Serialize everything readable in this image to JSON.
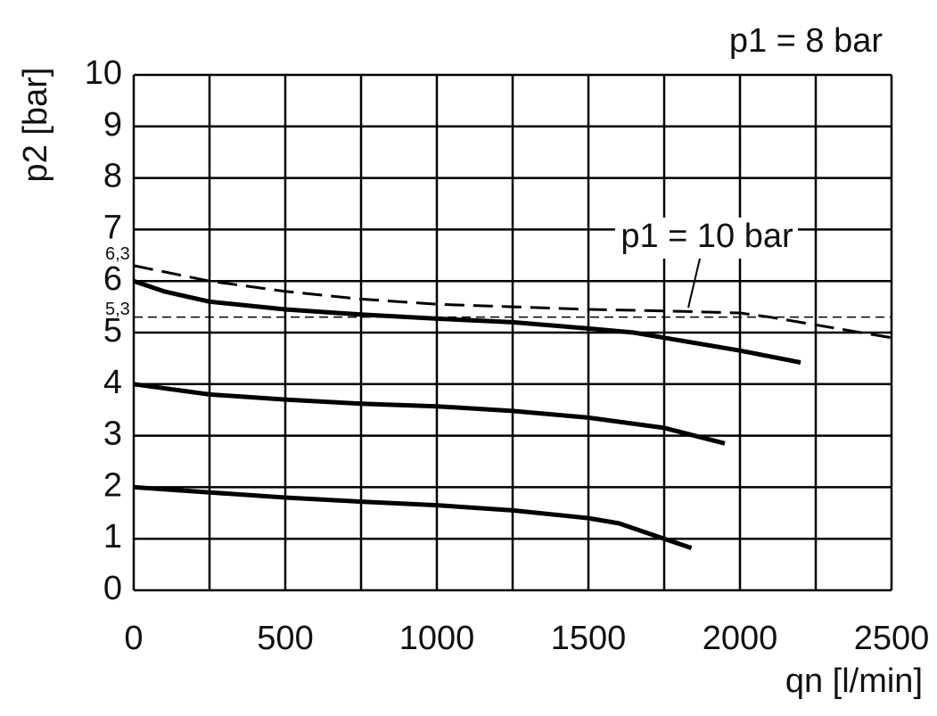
{
  "chart_data": {
    "type": "line",
    "y_label": "p2 [bar]",
    "x_label": "qn [l/min]",
    "annotations": [
      "p1 = 8 bar"
    ],
    "xlim": [
      0,
      2500
    ],
    "xticks": [
      0,
      500,
      1000,
      1500,
      2000,
      2500
    ],
    "x_minor_grid": [
      250,
      750,
      1250,
      1750,
      2250
    ],
    "ylim": [
      0,
      10
    ],
    "yticks": [
      0,
      1,
      2,
      3,
      4,
      5,
      6,
      7,
      8,
      9,
      10
    ],
    "grid": true,
    "reference_lines": [
      {
        "value": 5.3,
        "label": "5,3"
      }
    ],
    "start_labels": [
      {
        "value": 6.3,
        "label": "6,3"
      }
    ],
    "series": [
      {
        "color": "#000000",
        "dashed": false,
        "x": [
          0,
          100,
          250,
          500,
          750,
          1000,
          1250,
          1500,
          1650,
          1750,
          2000,
          2200
        ],
        "values": [
          6.0,
          5.8,
          5.6,
          5.45,
          5.35,
          5.27,
          5.2,
          5.08,
          5.0,
          4.9,
          4.65,
          4.42
        ]
      },
      {
        "color": "#000000",
        "dashed": false,
        "x": [
          0,
          250,
          500,
          750,
          1000,
          1250,
          1500,
          1750,
          1950
        ],
        "values": [
          4.0,
          3.8,
          3.7,
          3.62,
          3.57,
          3.48,
          3.35,
          3.15,
          2.85
        ]
      },
      {
        "color": "#000000",
        "dashed": false,
        "x": [
          0,
          250,
          500,
          750,
          1000,
          1250,
          1500,
          1600,
          1750,
          1840
        ],
        "values": [
          2.0,
          1.9,
          1.8,
          1.72,
          1.65,
          1.55,
          1.4,
          1.3,
          1.0,
          0.82
        ]
      },
      {
        "name": "p1 = 10 bar",
        "color": "#000000",
        "dashed": true,
        "x": [
          0,
          250,
          500,
          750,
          1000,
          1250,
          1500,
          1750,
          2000,
          2100,
          2500
        ],
        "values": [
          6.3,
          6.0,
          5.8,
          5.65,
          5.55,
          5.5,
          5.45,
          5.42,
          5.38,
          5.3,
          4.9
        ]
      }
    ]
  }
}
